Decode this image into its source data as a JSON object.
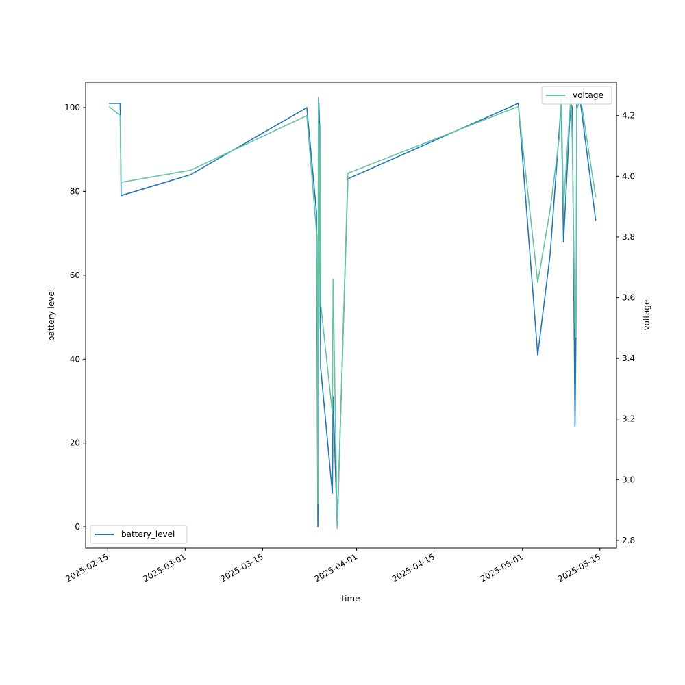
{
  "chart_data": {
    "type": "line",
    "xlabel": "time",
    "ylabel": "battery level",
    "y2label": "voltage",
    "x_ticks": [
      "2025-02-15",
      "2025-03-01",
      "2025-03-15",
      "2025-04-01",
      "2025-04-15",
      "2025-05-01",
      "2025-05-15"
    ],
    "y_ticks": [
      0,
      20,
      40,
      60,
      80,
      100
    ],
    "y2_ticks": [
      2.8,
      3.0,
      3.2,
      3.4,
      3.6,
      3.8,
      4.0,
      4.2
    ],
    "xlim": [
      "2025-02-11T00:00",
      "2025-05-18T00:00"
    ],
    "ylim": [
      -5.05,
      106.05
    ],
    "y2lim": [
      2.775,
      4.31
    ],
    "legend_left_placement": "lower-left",
    "legend_right_placement": "upper-right",
    "colors": {
      "battery_level": "#1f77b4",
      "voltage": "#66c2a5"
    },
    "series": [
      {
        "name": "battery_level",
        "axis": "left",
        "x": [
          "2025-02-15T06:00",
          "2025-02-17T06:00",
          "2025-02-17T10:00",
          "2025-03-02T00:00",
          "2025-03-23T00:00",
          "2025-03-24T18:00",
          "2025-03-25T00:00",
          "2025-03-25T01:00",
          "2025-03-25T04:00",
          "2025-03-25T08:00",
          "2025-03-25T12:00",
          "2025-03-27T15:00",
          "2025-03-27T18:00",
          "2025-03-28T12:00",
          "2025-03-30T10:00",
          "2025-04-30T06:00",
          "2025-05-03T18:00",
          "2025-05-06T00:00",
          "2025-05-07T16:00",
          "2025-05-08T00:00",
          "2025-05-08T10:00",
          "2025-05-09T12:00",
          "2025-05-09T18:00",
          "2025-05-10T00:00",
          "2025-05-10T12:00",
          "2025-05-10T16:00",
          "2025-05-10T20:00",
          "2025-05-11T12:00",
          "2025-05-14T06:00"
        ],
        "values": [
          101,
          101,
          79,
          84,
          100,
          75,
          0,
          8,
          101,
          95,
          38,
          8,
          31,
          0,
          83,
          101,
          41,
          65,
          95,
          101,
          68,
          96,
          101,
          100,
          24,
          45,
          101,
          101,
          73
        ]
      },
      {
        "name": "voltage",
        "axis": "right",
        "x": [
          "2025-02-15T06:00",
          "2025-02-17T06:00",
          "2025-02-17T10:00",
          "2025-03-02T00:00",
          "2025-03-23T00:00",
          "2025-03-24T20:00",
          "2025-03-25T00:00",
          "2025-03-25T02:00",
          "2025-03-25T05:00",
          "2025-03-25T09:00",
          "2025-03-25T12:00",
          "2025-03-27T15:00",
          "2025-03-27T18:00",
          "2025-03-28T12:00",
          "2025-03-30T10:00",
          "2025-04-30T06:00",
          "2025-05-03T18:00",
          "2025-05-06T00:00",
          "2025-05-07T16:00",
          "2025-05-08T00:00",
          "2025-05-08T10:00",
          "2025-05-09T12:00",
          "2025-05-09T18:00",
          "2025-05-10T00:00",
          "2025-05-10T12:00",
          "2025-05-10T16:00",
          "2025-05-10T20:00",
          "2025-05-11T12:00",
          "2025-05-14T06:00"
        ],
        "values": [
          4.23,
          4.2,
          3.98,
          4.02,
          4.2,
          3.8,
          2.92,
          4.26,
          3.5,
          4.17,
          3.58,
          3.22,
          3.66,
          2.84,
          4.01,
          4.23,
          3.65,
          3.89,
          4.13,
          4.26,
          3.9,
          4.2,
          4.26,
          4.12,
          3.5,
          3.47,
          4.22,
          4.26,
          3.93
        ]
      }
    ]
  }
}
